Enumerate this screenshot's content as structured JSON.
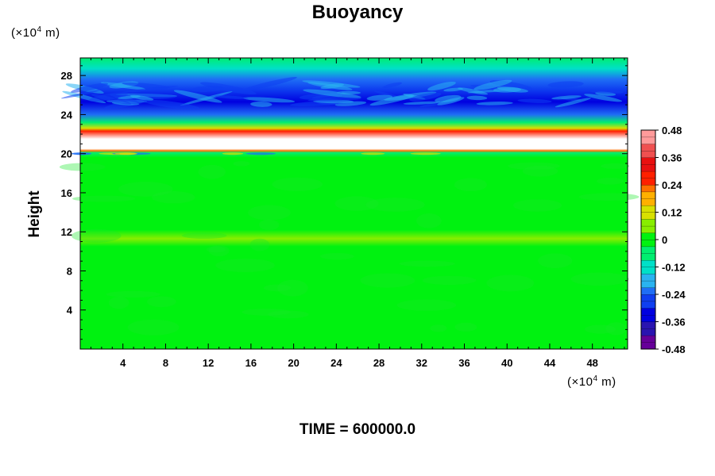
{
  "chart_data": {
    "type": "heatmap",
    "title": "Buoyancy",
    "xlabel": "",
    "ylabel": "Height",
    "x_unit": {
      "prefix": "(×10",
      "exp": "4",
      "suffix": " m)"
    },
    "y_unit": {
      "prefix": "(×10",
      "exp": "4",
      "suffix": " m)"
    },
    "xlim": [
      0,
      51.3
    ],
    "ylim": [
      0,
      29.8
    ],
    "x_ticks": [
      "4",
      "8",
      "12",
      "16",
      "20",
      "24",
      "28",
      "32",
      "36",
      "40",
      "44",
      "48"
    ],
    "y_ticks": [
      "4",
      "8",
      "12",
      "16",
      "20",
      "24",
      "28"
    ],
    "colorbar": {
      "min": -0.48,
      "max": 0.48,
      "labels": [
        "0.48",
        "0.36",
        "0.24",
        "0.12",
        "0",
        "-0.12",
        "-0.24",
        "-0.36",
        "-0.48"
      ]
    },
    "profile_by_height": [
      {
        "height": 0,
        "value": 0.0
      },
      {
        "height": 10.5,
        "value": 0.0
      },
      {
        "height": 11.3,
        "value": 0.05
      },
      {
        "height": 12.2,
        "value": 0.0
      },
      {
        "height": 19.6,
        "value": 0.0
      },
      {
        "height": 20.1,
        "value": -0.08
      },
      {
        "height": 20.3,
        "value": 0.25
      },
      {
        "height": 20.5,
        "value": 0.5
      },
      {
        "height": 21.5,
        "value": 0.52
      },
      {
        "height": 22.3,
        "value": 0.3
      },
      {
        "height": 22.6,
        "value": 0.1
      },
      {
        "height": 23.2,
        "value": -0.04
      },
      {
        "height": 24.0,
        "value": -0.25
      },
      {
        "height": 25.3,
        "value": -0.32
      },
      {
        "height": 26.6,
        "value": -0.26
      },
      {
        "height": 27.6,
        "value": -0.2
      },
      {
        "height": 28.7,
        "value": -0.12
      },
      {
        "height": 29.8,
        "value": -0.06
      }
    ],
    "palette": [
      "#660099",
      "#2a14b0",
      "#0000e0",
      "#0f3ff0",
      "#1f6ef5",
      "#2ab3f0",
      "#00e0c8",
      "#00ee70",
      "#00f210",
      "#88ee00",
      "#d8e000",
      "#ffb000",
      "#ff7000",
      "#ff2000",
      "#e81010",
      "#f05050",
      "#ff9a9a"
    ]
  },
  "footer": {
    "text": "TIME = 600000.0"
  }
}
